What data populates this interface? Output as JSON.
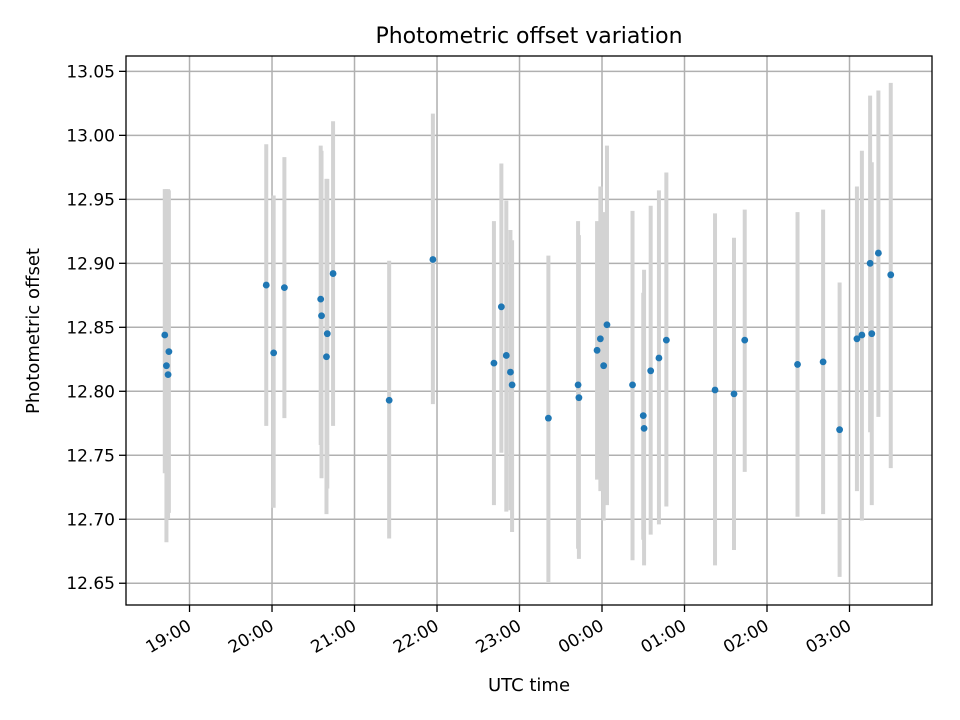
{
  "chart_data": {
    "type": "scatter",
    "title": "Photometric offset variation",
    "xlabel": "UTC time",
    "ylabel": "Photometric offset",
    "grid": true,
    "x_axis": {
      "kind": "time",
      "unit": "hours since 00:00 UTC",
      "xlim": [
        -5.77,
        4.0
      ],
      "ticks": [
        -5,
        -4,
        -3,
        -2,
        -1,
        0,
        1,
        2,
        3
      ],
      "tick_labels": [
        "19:00",
        "20:00",
        "21:00",
        "22:00",
        "23:00",
        "00:00",
        "01:00",
        "02:00",
        "03:00"
      ]
    },
    "y_axis": {
      "ylim": [
        12.633,
        13.062
      ],
      "ticks": [
        12.65,
        12.7,
        12.75,
        12.8,
        12.85,
        12.9,
        12.95,
        13.0,
        13.05
      ],
      "tick_labels": [
        "12.65",
        "12.70",
        "12.75",
        "12.80",
        "12.85",
        "12.90",
        "12.95",
        "13.00",
        "13.05"
      ]
    },
    "marker_color": "#1f77b4",
    "errorbar_color": "#d3d3d3",
    "series": [
      {
        "points": [
          {
            "x": -5.3,
            "y": 12.844,
            "lo": 12.736,
            "hi": 12.958
          },
          {
            "x": -5.28,
            "y": 12.82,
            "lo": 12.682,
            "hi": 12.958
          },
          {
            "x": -5.26,
            "y": 12.813,
            "lo": 12.7,
            "hi": 12.958
          },
          {
            "x": -5.25,
            "y": 12.831,
            "lo": 12.705,
            "hi": 12.957
          },
          {
            "x": -4.07,
            "y": 12.883,
            "lo": 12.773,
            "hi": 12.993
          },
          {
            "x": -3.98,
            "y": 12.83,
            "lo": 12.709,
            "hi": 12.953
          },
          {
            "x": -3.85,
            "y": 12.881,
            "lo": 12.779,
            "hi": 12.983
          },
          {
            "x": -3.41,
            "y": 12.872,
            "lo": 12.758,
            "hi": 12.992
          },
          {
            "x": -3.4,
            "y": 12.859,
            "lo": 12.732,
            "hi": 12.988
          },
          {
            "x": -3.34,
            "y": 12.827,
            "lo": 12.704,
            "hi": 12.966
          },
          {
            "x": -3.33,
            "y": 12.845,
            "lo": 12.724,
            "hi": 12.966
          },
          {
            "x": -3.26,
            "y": 12.892,
            "lo": 12.773,
            "hi": 13.011
          },
          {
            "x": -2.58,
            "y": 12.793,
            "lo": 12.685,
            "hi": 12.902
          },
          {
            "x": -2.05,
            "y": 12.903,
            "lo": 12.79,
            "hi": 13.017
          },
          {
            "x": -1.31,
            "y": 12.822,
            "lo": 12.711,
            "hi": 12.933
          },
          {
            "x": -1.22,
            "y": 12.866,
            "lo": 12.752,
            "hi": 12.978
          },
          {
            "x": -1.16,
            "y": 12.828,
            "lo": 12.706,
            "hi": 12.949
          },
          {
            "x": -1.11,
            "y": 12.815,
            "lo": 12.707,
            "hi": 12.926
          },
          {
            "x": -1.09,
            "y": 12.805,
            "lo": 12.69,
            "hi": 12.918
          },
          {
            "x": -0.65,
            "y": 12.779,
            "lo": 12.651,
            "hi": 12.906
          },
          {
            "x": -0.29,
            "y": 12.805,
            "lo": 12.677,
            "hi": 12.933
          },
          {
            "x": -0.28,
            "y": 12.795,
            "lo": 12.669,
            "hi": 12.922
          },
          {
            "x": -0.06,
            "y": 12.832,
            "lo": 12.731,
            "hi": 12.933
          },
          {
            "x": -0.02,
            "y": 12.841,
            "lo": 12.722,
            "hi": 12.96
          },
          {
            "x": 0.02,
            "y": 12.82,
            "lo": 12.699,
            "hi": 12.94
          },
          {
            "x": 0.06,
            "y": 12.852,
            "lo": 12.711,
            "hi": 12.992
          },
          {
            "x": 0.37,
            "y": 12.805,
            "lo": 12.668,
            "hi": 12.941
          },
          {
            "x": 0.5,
            "y": 12.781,
            "lo": 12.684,
            "hi": 12.877
          },
          {
            "x": 0.51,
            "y": 12.771,
            "lo": 12.664,
            "hi": 12.895
          },
          {
            "x": 0.59,
            "y": 12.816,
            "lo": 12.688,
            "hi": 12.945
          },
          {
            "x": 0.69,
            "y": 12.826,
            "lo": 12.696,
            "hi": 12.957
          },
          {
            "x": 0.78,
            "y": 12.84,
            "lo": 12.71,
            "hi": 12.971
          },
          {
            "x": 1.37,
            "y": 12.801,
            "lo": 12.664,
            "hi": 12.939
          },
          {
            "x": 1.6,
            "y": 12.798,
            "lo": 12.676,
            "hi": 12.92
          },
          {
            "x": 1.73,
            "y": 12.84,
            "lo": 12.737,
            "hi": 12.942
          },
          {
            "x": 2.37,
            "y": 12.821,
            "lo": 12.702,
            "hi": 12.94
          },
          {
            "x": 2.68,
            "y": 12.823,
            "lo": 12.704,
            "hi": 12.942
          },
          {
            "x": 2.88,
            "y": 12.77,
            "lo": 12.655,
            "hi": 12.885
          },
          {
            "x": 3.09,
            "y": 12.841,
            "lo": 12.722,
            "hi": 12.96
          },
          {
            "x": 3.15,
            "y": 12.844,
            "lo": 12.699,
            "hi": 12.988
          },
          {
            "x": 3.25,
            "y": 12.9,
            "lo": 12.768,
            "hi": 13.031
          },
          {
            "x": 3.27,
            "y": 12.845,
            "lo": 12.711,
            "hi": 12.979
          },
          {
            "x": 3.35,
            "y": 12.908,
            "lo": 12.78,
            "hi": 13.035
          },
          {
            "x": 3.5,
            "y": 12.891,
            "lo": 12.74,
            "hi": 13.041
          }
        ]
      }
    ]
  }
}
